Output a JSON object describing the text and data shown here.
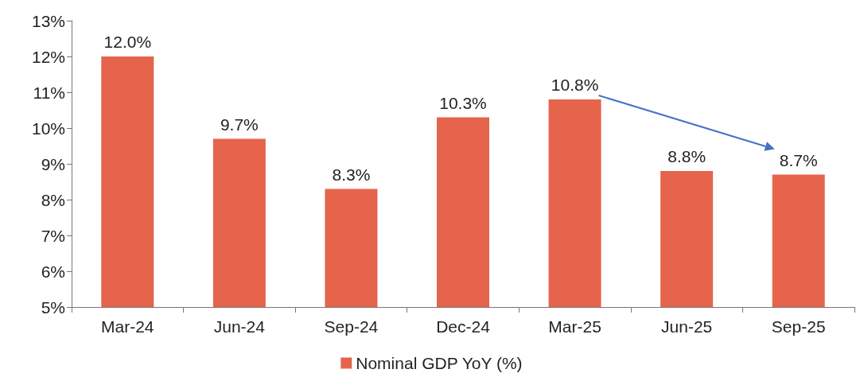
{
  "chart_data": {
    "type": "bar",
    "categories": [
      "Mar-24",
      "Jun-24",
      "Sep-24",
      "Dec-24",
      "Mar-25",
      "Jun-25",
      "Sep-25"
    ],
    "series": [
      {
        "name": "Nominal GDP YoY (%)",
        "color": "#e5644b",
        "values": [
          12.0,
          9.7,
          8.3,
          10.3,
          10.8,
          8.8,
          8.7
        ],
        "value_labels": [
          "12.0%",
          "9.7%",
          "8.3%",
          "10.3%",
          "10.8%",
          "8.8%",
          "8.7%"
        ]
      }
    ],
    "ylim": [
      5,
      13
    ],
    "yticks": [
      {
        "value": 5,
        "label": "5%"
      },
      {
        "value": 6,
        "label": "6%"
      },
      {
        "value": 7,
        "label": "7%"
      },
      {
        "value": 8,
        "label": "8%"
      },
      {
        "value": 9,
        "label": "9%"
      },
      {
        "value": 10,
        "label": "10%"
      },
      {
        "value": 11,
        "label": "11%"
      },
      {
        "value": 12,
        "label": "12%"
      },
      {
        "value": 13,
        "label": "13%"
      }
    ],
    "grid": false,
    "legend": "bottom"
  }
}
